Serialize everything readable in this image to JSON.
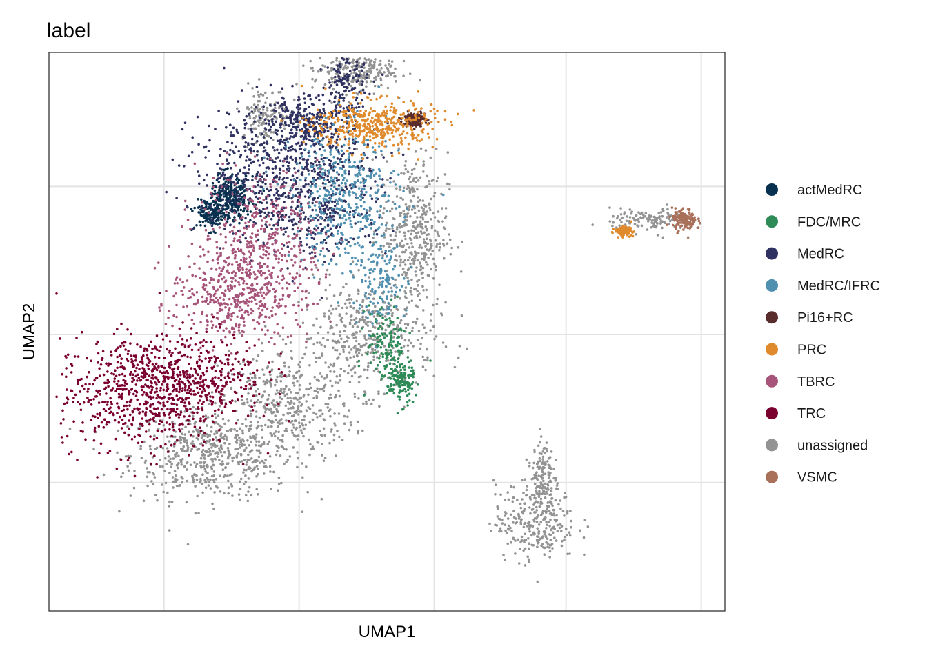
{
  "chart_data": {
    "type": "scatter",
    "title": "label",
    "xlabel": "UMAP1",
    "ylabel": "UMAP2",
    "x_ticks_labeled": false,
    "y_ticks_labeled": false,
    "xlim": [
      0,
      100
    ],
    "ylim": [
      0,
      100
    ],
    "grid": true,
    "legend_position": "right",
    "series": [
      {
        "name": "actMedRC",
        "color": "#08304f",
        "clusters": [
          {
            "x": 27,
            "y": 74,
            "sx": 1.6,
            "sy": 2.0,
            "weight": 2
          },
          {
            "x": 24,
            "y": 71,
            "sx": 1.2,
            "sy": 1.4,
            "weight": 1
          }
        ]
      },
      {
        "name": "FDC/MRC",
        "color": "#2e8b57",
        "clusters": [
          {
            "x": 50,
            "y": 48,
            "sx": 1.5,
            "sy": 3.5,
            "weight": 1
          },
          {
            "x": 52,
            "y": 41,
            "sx": 1.0,
            "sy": 2.0,
            "weight": 1
          }
        ]
      },
      {
        "name": "MedRC",
        "color": "#2f3160",
        "clusters": [
          {
            "x": 34,
            "y": 79,
            "sx": 6.5,
            "sy": 6.0,
            "weight": 4
          },
          {
            "x": 38,
            "y": 87,
            "sx": 3.5,
            "sy": 2.5,
            "weight": 2
          },
          {
            "x": 40,
            "y": 73,
            "sx": 5.0,
            "sy": 5.0,
            "weight": 2
          },
          {
            "x": 44,
            "y": 95,
            "sx": 1.5,
            "sy": 3.0,
            "weight": 1
          }
        ]
      },
      {
        "name": "MedRC/IFRC",
        "color": "#4f8fb0",
        "clusters": [
          {
            "x": 44,
            "y": 74,
            "sx": 4.0,
            "sy": 6.0,
            "weight": 3
          },
          {
            "x": 49,
            "y": 59,
            "sx": 2.0,
            "sy": 4.0,
            "weight": 1
          }
        ]
      },
      {
        "name": "Pi16+RC",
        "color": "#5a2d2d",
        "clusters": [
          {
            "x": 54,
            "y": 88,
            "sx": 0.8,
            "sy": 0.6,
            "weight": 1
          }
        ]
      },
      {
        "name": "PRC",
        "color": "#e08a2e",
        "clusters": [
          {
            "x": 48,
            "y": 87,
            "sx": 4.5,
            "sy": 2.2,
            "weight": 3
          },
          {
            "x": 85,
            "y": 68,
            "sx": 0.6,
            "sy": 0.4,
            "weight": 1
          }
        ]
      },
      {
        "name": "TBRC",
        "color": "#a65479",
        "clusters": [
          {
            "x": 31,
            "y": 64,
            "sx": 4.5,
            "sy": 7.0,
            "weight": 4
          },
          {
            "x": 26,
            "y": 55,
            "sx": 4.0,
            "sy": 4.0,
            "weight": 2
          }
        ]
      },
      {
        "name": "TRC",
        "color": "#7a0030",
        "clusters": [
          {
            "x": 14,
            "y": 39,
            "sx": 6.5,
            "sy": 5.0,
            "weight": 5
          },
          {
            "x": 22,
            "y": 43,
            "sx": 5.0,
            "sy": 3.5,
            "weight": 2
          }
        ]
      },
      {
        "name": "unassigned",
        "color": "#939393",
        "clusters": [
          {
            "x": 24,
            "y": 28,
            "sx": 6.0,
            "sy": 4.0,
            "weight": 4
          },
          {
            "x": 35,
            "y": 37,
            "sx": 5.0,
            "sy": 5.0,
            "weight": 3
          },
          {
            "x": 47,
            "y": 49,
            "sx": 5.0,
            "sy": 5.0,
            "weight": 3
          },
          {
            "x": 54,
            "y": 68,
            "sx": 2.5,
            "sy": 7.0,
            "weight": 3
          },
          {
            "x": 32,
            "y": 89,
            "sx": 1.8,
            "sy": 2.5,
            "weight": 1
          },
          {
            "x": 45,
            "y": 97,
            "sx": 3.0,
            "sy": 2.0,
            "weight": 2
          },
          {
            "x": 72,
            "y": 16,
            "sx": 3.0,
            "sy": 3.5,
            "weight": 2
          },
          {
            "x": 73,
            "y": 24,
            "sx": 0.8,
            "sy": 3.5,
            "weight": 1
          },
          {
            "x": 89,
            "y": 70,
            "sx": 3.0,
            "sy": 1.0,
            "weight": 1
          }
        ]
      },
      {
        "name": "VSMC",
        "color": "#a9705a",
        "clusters": [
          {
            "x": 94,
            "y": 70,
            "sx": 0.9,
            "sy": 1.0,
            "weight": 1
          }
        ]
      }
    ]
  }
}
